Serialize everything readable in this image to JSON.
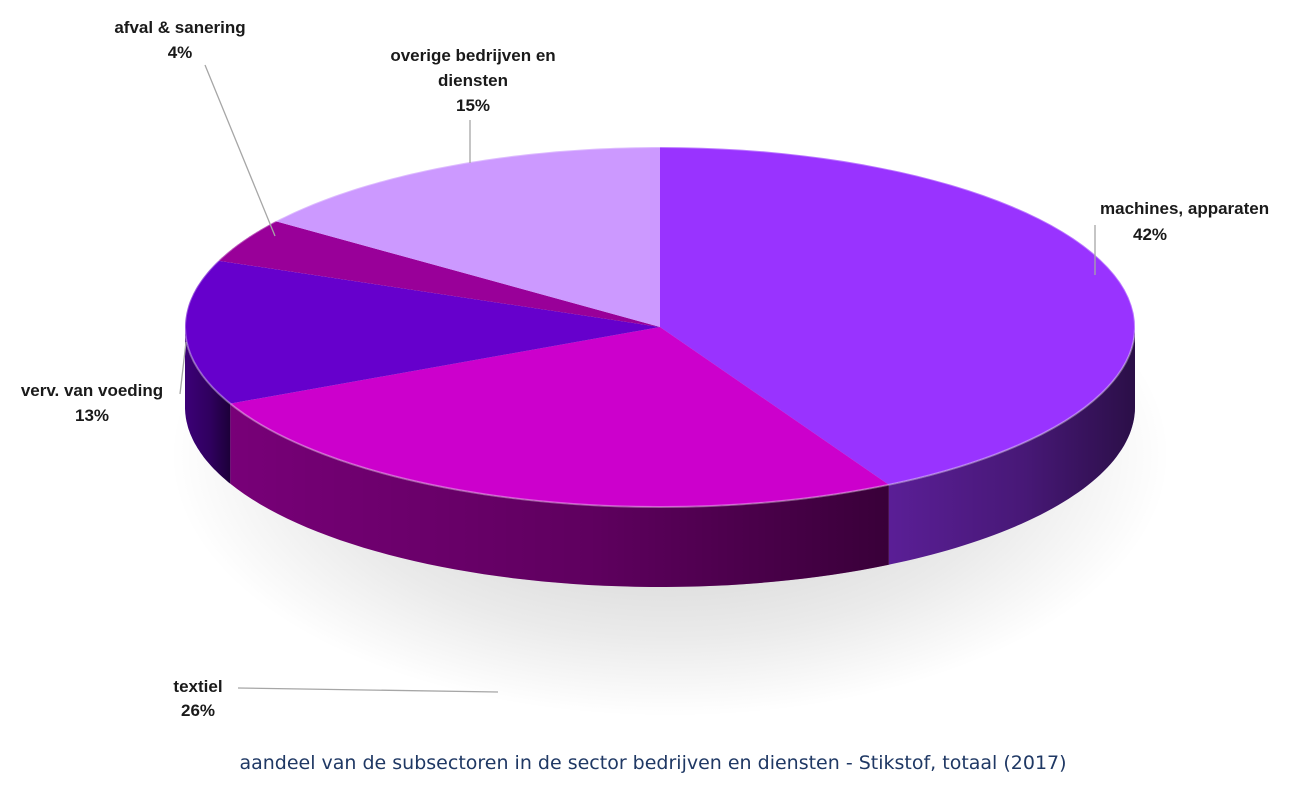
{
  "chart_data": {
    "type": "pie",
    "style": "3d",
    "title": "aandeel van de subsectoren in de sector bedrijven en diensten - Stikstof, totaal (2017)",
    "slices": [
      {
        "name": "machines, apparaten",
        "value": 42,
        "label": "42%",
        "color": "#9933ff"
      },
      {
        "name": "textiel",
        "value": 26,
        "label": "26%",
        "color": "#cc00cc"
      },
      {
        "name": "verv. van voeding",
        "value": 13,
        "label": "13%",
        "color": "#6600cc"
      },
      {
        "name": "afval & sanering",
        "value": 4,
        "label": "4%",
        "color": "#990099"
      },
      {
        "name": "overige bedrijven en diensten",
        "value": 15,
        "label": "15%",
        "color": "#cc99ff"
      }
    ]
  }
}
